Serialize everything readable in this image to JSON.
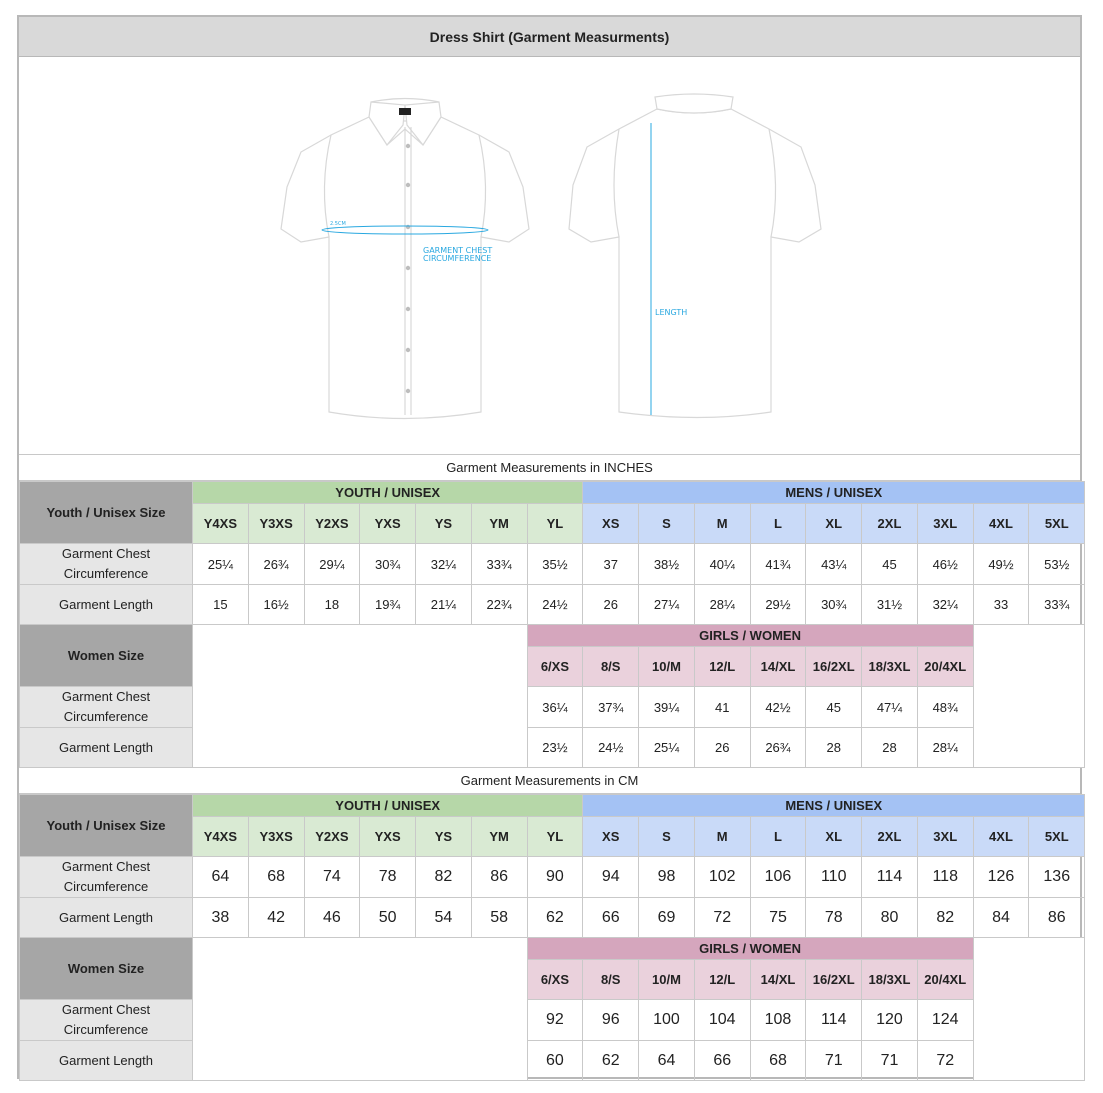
{
  "title": "Dress Shirt (Garment Measurments)",
  "diagram": {
    "front_label_small": "2.5CM",
    "chest_label_line1": "GARMENT CHEST",
    "chest_label_line2": "CIRCUMFERENCE",
    "length_label": "LENGTH",
    "accent_color": "#29a8e0"
  },
  "inches": {
    "section_title": "Garment Measurements in INCHES",
    "youth_label": "Youth / Unisex Size",
    "youth_group": "YOUTH / UNISEX",
    "mens_group": "MENS / UNISEX",
    "sizes": [
      "Y4XS",
      "Y3XS",
      "Y2XS",
      "YXS",
      "YS",
      "YM",
      "YL",
      "XS",
      "S",
      "M",
      "L",
      "XL",
      "2XL",
      "3XL",
      "4XL",
      "5XL"
    ],
    "rows": [
      {
        "label_line1": "Garment Chest",
        "label_line2": "Circumference",
        "values": [
          "25¼",
          "26¾",
          "29¼",
          "30¾",
          "32¼",
          "33¾",
          "35½",
          "37",
          "38½",
          "40¼",
          "41¾",
          "43¼",
          "45",
          "46½",
          "49½",
          "53½"
        ]
      },
      {
        "label_line1": "Garment Length",
        "label_line2": "",
        "values": [
          "15",
          "16½",
          "18",
          "19¾",
          "21¼",
          "22¾",
          "24½",
          "26",
          "27¼",
          "28¼",
          "29½",
          "30¾",
          "31½",
          "32¼",
          "33",
          "33¾"
        ]
      }
    ],
    "women_label": "Women Size",
    "girls_group": "GIRLS / WOMEN",
    "women_sizes": [
      "6/XS",
      "8/S",
      "10/M",
      "12/L",
      "14/XL",
      "16/2XL",
      "18/3XL",
      "20/4XL"
    ],
    "women_rows": [
      {
        "label_line1": "Garment Chest",
        "label_line2": "Circumference",
        "values": [
          "36¼",
          "37¾",
          "39¼",
          "41",
          "42½",
          "45",
          "47¼",
          "48¾"
        ]
      },
      {
        "label_line1": "Garment Length",
        "label_line2": "",
        "values": [
          "23½",
          "24½",
          "25¼",
          "26",
          "26¾",
          "28",
          "28",
          "28¼"
        ]
      }
    ]
  },
  "cm": {
    "section_title": "Garment Measurements in CM",
    "youth_label": "Youth / Unisex Size",
    "youth_group": "YOUTH / UNISEX",
    "mens_group": "MENS / UNISEX",
    "sizes": [
      "Y4XS",
      "Y3XS",
      "Y2XS",
      "YXS",
      "YS",
      "YM",
      "YL",
      "XS",
      "S",
      "M",
      "L",
      "XL",
      "2XL",
      "3XL",
      "4XL",
      "5XL"
    ],
    "rows": [
      {
        "label_line1": "Garment Chest",
        "label_line2": "Circumference",
        "values": [
          "64",
          "68",
          "74",
          "78",
          "82",
          "86",
          "90",
          "94",
          "98",
          "102",
          "106",
          "110",
          "114",
          "118",
          "126",
          "136"
        ]
      },
      {
        "label_line1": "Garment Length",
        "label_line2": "",
        "values": [
          "38",
          "42",
          "46",
          "50",
          "54",
          "58",
          "62",
          "66",
          "69",
          "72",
          "75",
          "78",
          "80",
          "82",
          "84",
          "86"
        ]
      }
    ],
    "women_label": "Women Size",
    "girls_group": "GIRLS / WOMEN",
    "women_sizes": [
      "6/XS",
      "8/S",
      "10/M",
      "12/L",
      "14/XL",
      "16/2XL",
      "18/3XL",
      "20/4XL"
    ],
    "women_rows": [
      {
        "label_line1": "Garment Chest",
        "label_line2": "Circumference",
        "values": [
          "92",
          "96",
          "100",
          "104",
          "108",
          "114",
          "120",
          "124"
        ]
      },
      {
        "label_line1": "Garment Length",
        "label_line2": "",
        "values": [
          "60",
          "62",
          "64",
          "66",
          "68",
          "71",
          "71",
          "72"
        ]
      }
    ]
  }
}
